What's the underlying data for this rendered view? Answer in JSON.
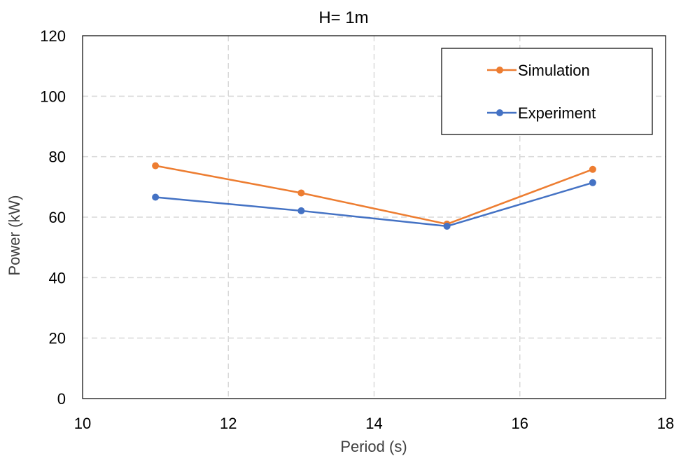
{
  "chart_data": {
    "type": "line",
    "title": "H= 1m",
    "xlabel": "Period (s)",
    "ylabel": "Power (kW)",
    "xlim": [
      10,
      18
    ],
    "ylim": [
      0,
      120
    ],
    "xticks": [
      10,
      12,
      14,
      16,
      18
    ],
    "yticks": [
      0,
      20,
      40,
      60,
      80,
      100,
      120
    ],
    "grid": true,
    "legend_position": "top-right",
    "x": [
      11,
      13,
      15,
      17
    ],
    "series": [
      {
        "name": "Simulation",
        "color": "#ED7D31",
        "values": [
          77,
          68,
          57.7,
          75.8
        ]
      },
      {
        "name": "Experiment",
        "color": "#4472C4",
        "values": [
          66.6,
          62.1,
          57,
          71.4
        ]
      }
    ]
  }
}
